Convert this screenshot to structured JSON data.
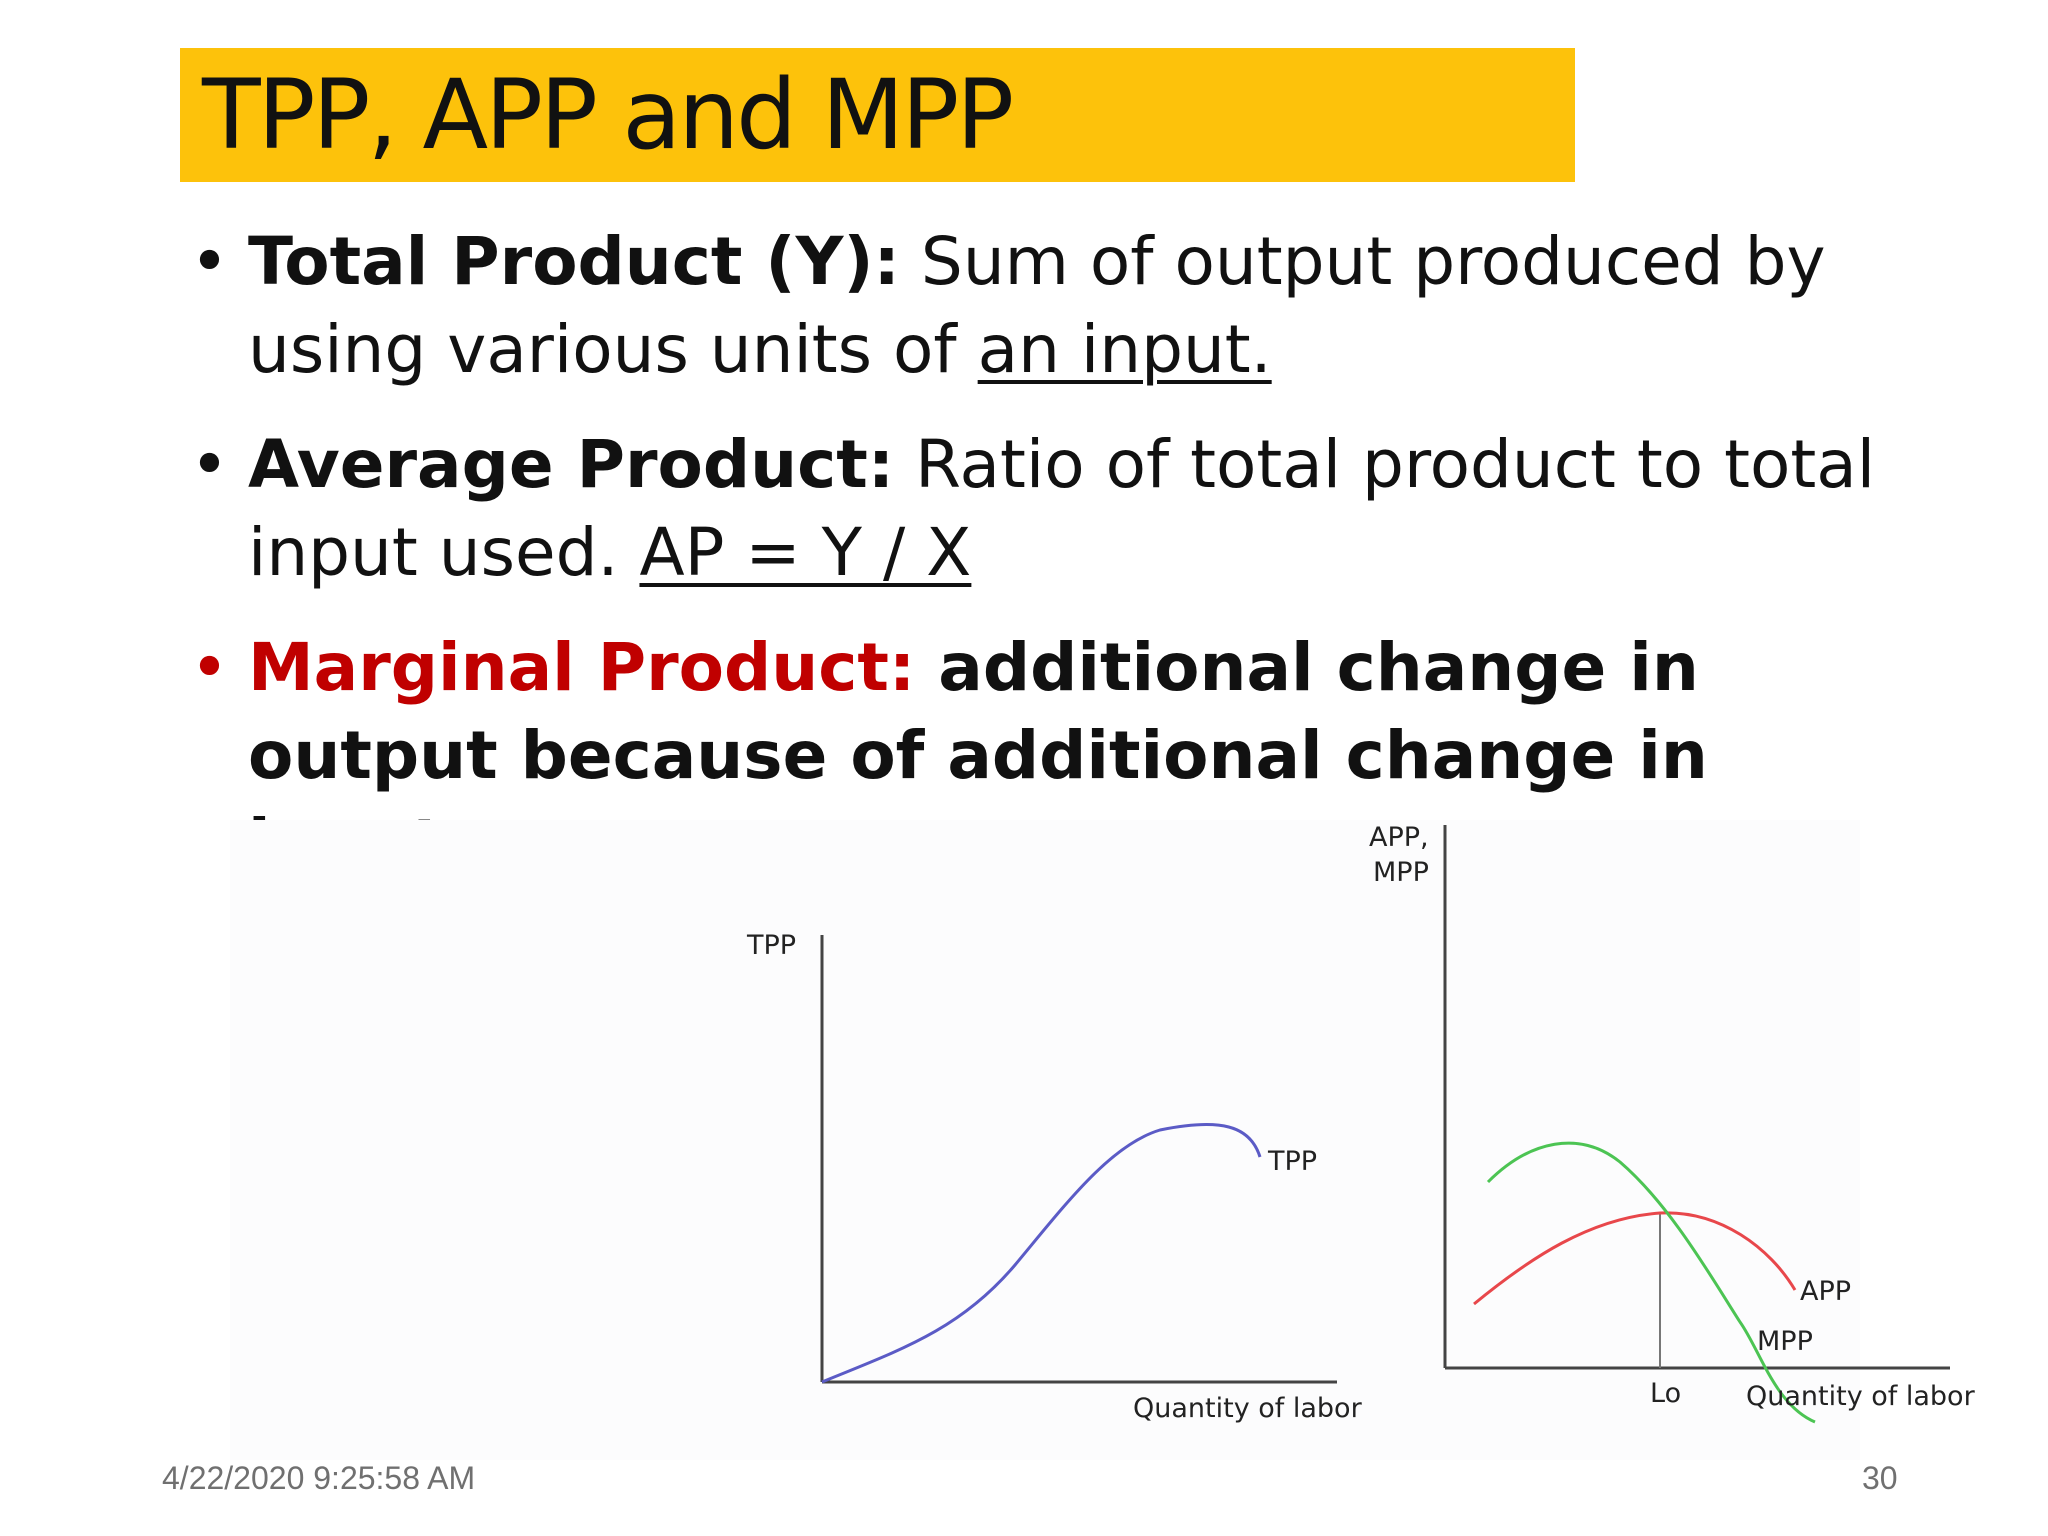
{
  "slide": {
    "title": "TPP, APP and MPP",
    "colors": {
      "title_background": "#fdc20b",
      "emphasis_red": "#c00000",
      "tpp_curve": "#5b5bc6",
      "app_curve": "#e8474b",
      "mpp_curve": "#4cc453"
    }
  },
  "bullets": [
    {
      "term": "Total Product (Y):",
      "text": " Sum of output produced by using various units of ",
      "underlined": "an input."
    },
    {
      "term": "Average Product:",
      "text": " Ratio of total product to total input used. ",
      "underlined": "AP = Y / X"
    },
    {
      "term": "Marginal Product:",
      "text": " additional change in output because of additional change in input."
    }
  ],
  "diagram_left": {
    "y_axis_label": "TPP",
    "x_axis_label": "Quantity of labor",
    "curve_label": "TPP"
  },
  "diagram_right": {
    "y_axis_label_line1": "APP,",
    "y_axis_label_line2": "MPP",
    "x_axis_label": "Quantity of labor",
    "app_label": "APP",
    "mpp_label": "MPP",
    "intersection_label": "Lo"
  },
  "footer": {
    "date": "4/22/2020 9:25:58 AM",
    "page": "30"
  }
}
